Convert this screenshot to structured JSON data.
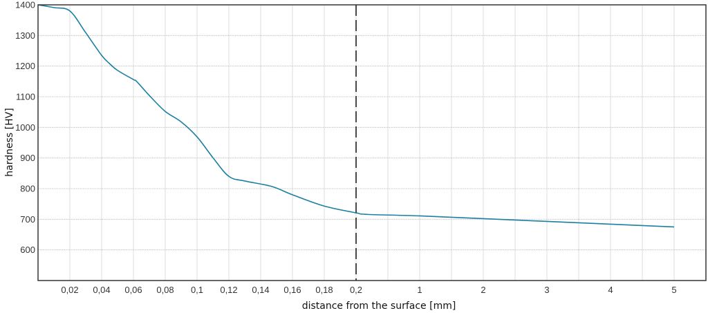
{
  "chart_data": {
    "type": "line",
    "title": "",
    "xlabel": "distance from the surface [mm]",
    "ylabel": "hardness [HV]",
    "ylim": [
      500,
      1400
    ],
    "yticks": [
      600,
      700,
      800,
      900,
      1000,
      1100,
      1200,
      1300,
      1400
    ],
    "xscale": "piecewise: linear 0–0.2 mm (step 0.02), then linear 1–5 mm (step 1)",
    "xticks": [
      {
        "value": 0.02,
        "label": "0,02"
      },
      {
        "value": 0.04,
        "label": "0,04"
      },
      {
        "value": 0.06,
        "label": "0,06"
      },
      {
        "value": 0.08,
        "label": "0,08"
      },
      {
        "value": 0.1,
        "label": "0,1"
      },
      {
        "value": 0.12,
        "label": "0,12"
      },
      {
        "value": 0.14,
        "label": "0,14"
      },
      {
        "value": 0.16,
        "label": "0,16"
      },
      {
        "value": 0.18,
        "label": "0,18"
      },
      {
        "value": 0.2,
        "label": "0,2"
      },
      {
        "value": 1,
        "label": "1"
      },
      {
        "value": 2,
        "label": "2"
      },
      {
        "value": 3,
        "label": "3"
      },
      {
        "value": 4,
        "label": "4"
      },
      {
        "value": 5,
        "label": "5"
      }
    ],
    "grid": true,
    "reference_line": {
      "x": 0.2,
      "style": "dashed",
      "color": "#333333"
    },
    "series": [
      {
        "color": "#1a7fa0",
        "x": [
          0,
          0.01,
          0.02,
          0.03,
          0.04,
          0.045,
          0.05,
          0.06,
          0.062,
          0.07,
          0.08,
          0.09,
          0.1,
          0.11,
          0.12,
          0.13,
          0.147,
          0.16,
          0.18,
          0.2,
          0.33,
          1,
          2,
          3,
          4,
          5
        ],
        "y": [
          1400,
          1391,
          1380,
          1309,
          1235,
          1208,
          1186,
          1156,
          1150,
          1104,
          1052,
          1018,
          969,
          901,
          840,
          825,
          807,
          780,
          743,
          721,
          716,
          711,
          702,
          693,
          684,
          675
        ]
      }
    ]
  }
}
